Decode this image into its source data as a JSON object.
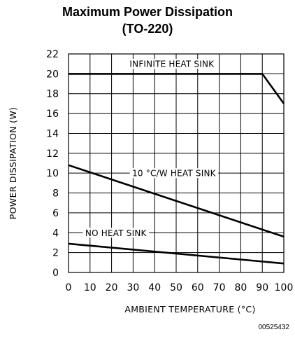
{
  "chart_data": {
    "type": "line",
    "title": "Maximum Power Dissipation",
    "subtitle": "(TO-220)",
    "xlabel": "AMBIENT TEMPERATURE (°C)",
    "ylabel": "POWER DISSIPATION (W)",
    "xlim": [
      0,
      100
    ],
    "ylim": [
      0,
      22
    ],
    "xticks": [
      "0",
      "10",
      "20",
      "30",
      "40",
      "50",
      "60",
      "70",
      "80",
      "90",
      "100"
    ],
    "yticks": [
      "0",
      "2",
      "4",
      "6",
      "8",
      "10",
      "12",
      "14",
      "16",
      "18",
      "20",
      "22"
    ],
    "grid": true,
    "series": [
      {
        "name": "INFINITE HEAT SINK",
        "points": [
          [
            0,
            20
          ],
          [
            90,
            20
          ],
          [
            100,
            17
          ]
        ],
        "label_at": [
          48,
          21.0
        ]
      },
      {
        "name": "10 °C/W HEAT SINK",
        "points": [
          [
            0,
            10.8
          ],
          [
            100,
            3.6
          ]
        ],
        "label_at": [
          49,
          10.0
        ]
      },
      {
        "name": "NO HEAT SINK",
        "points": [
          [
            0,
            2.9
          ],
          [
            100,
            0.9
          ]
        ],
        "label_at": [
          22,
          4.0
        ]
      }
    ]
  },
  "doc_number": "00525432"
}
